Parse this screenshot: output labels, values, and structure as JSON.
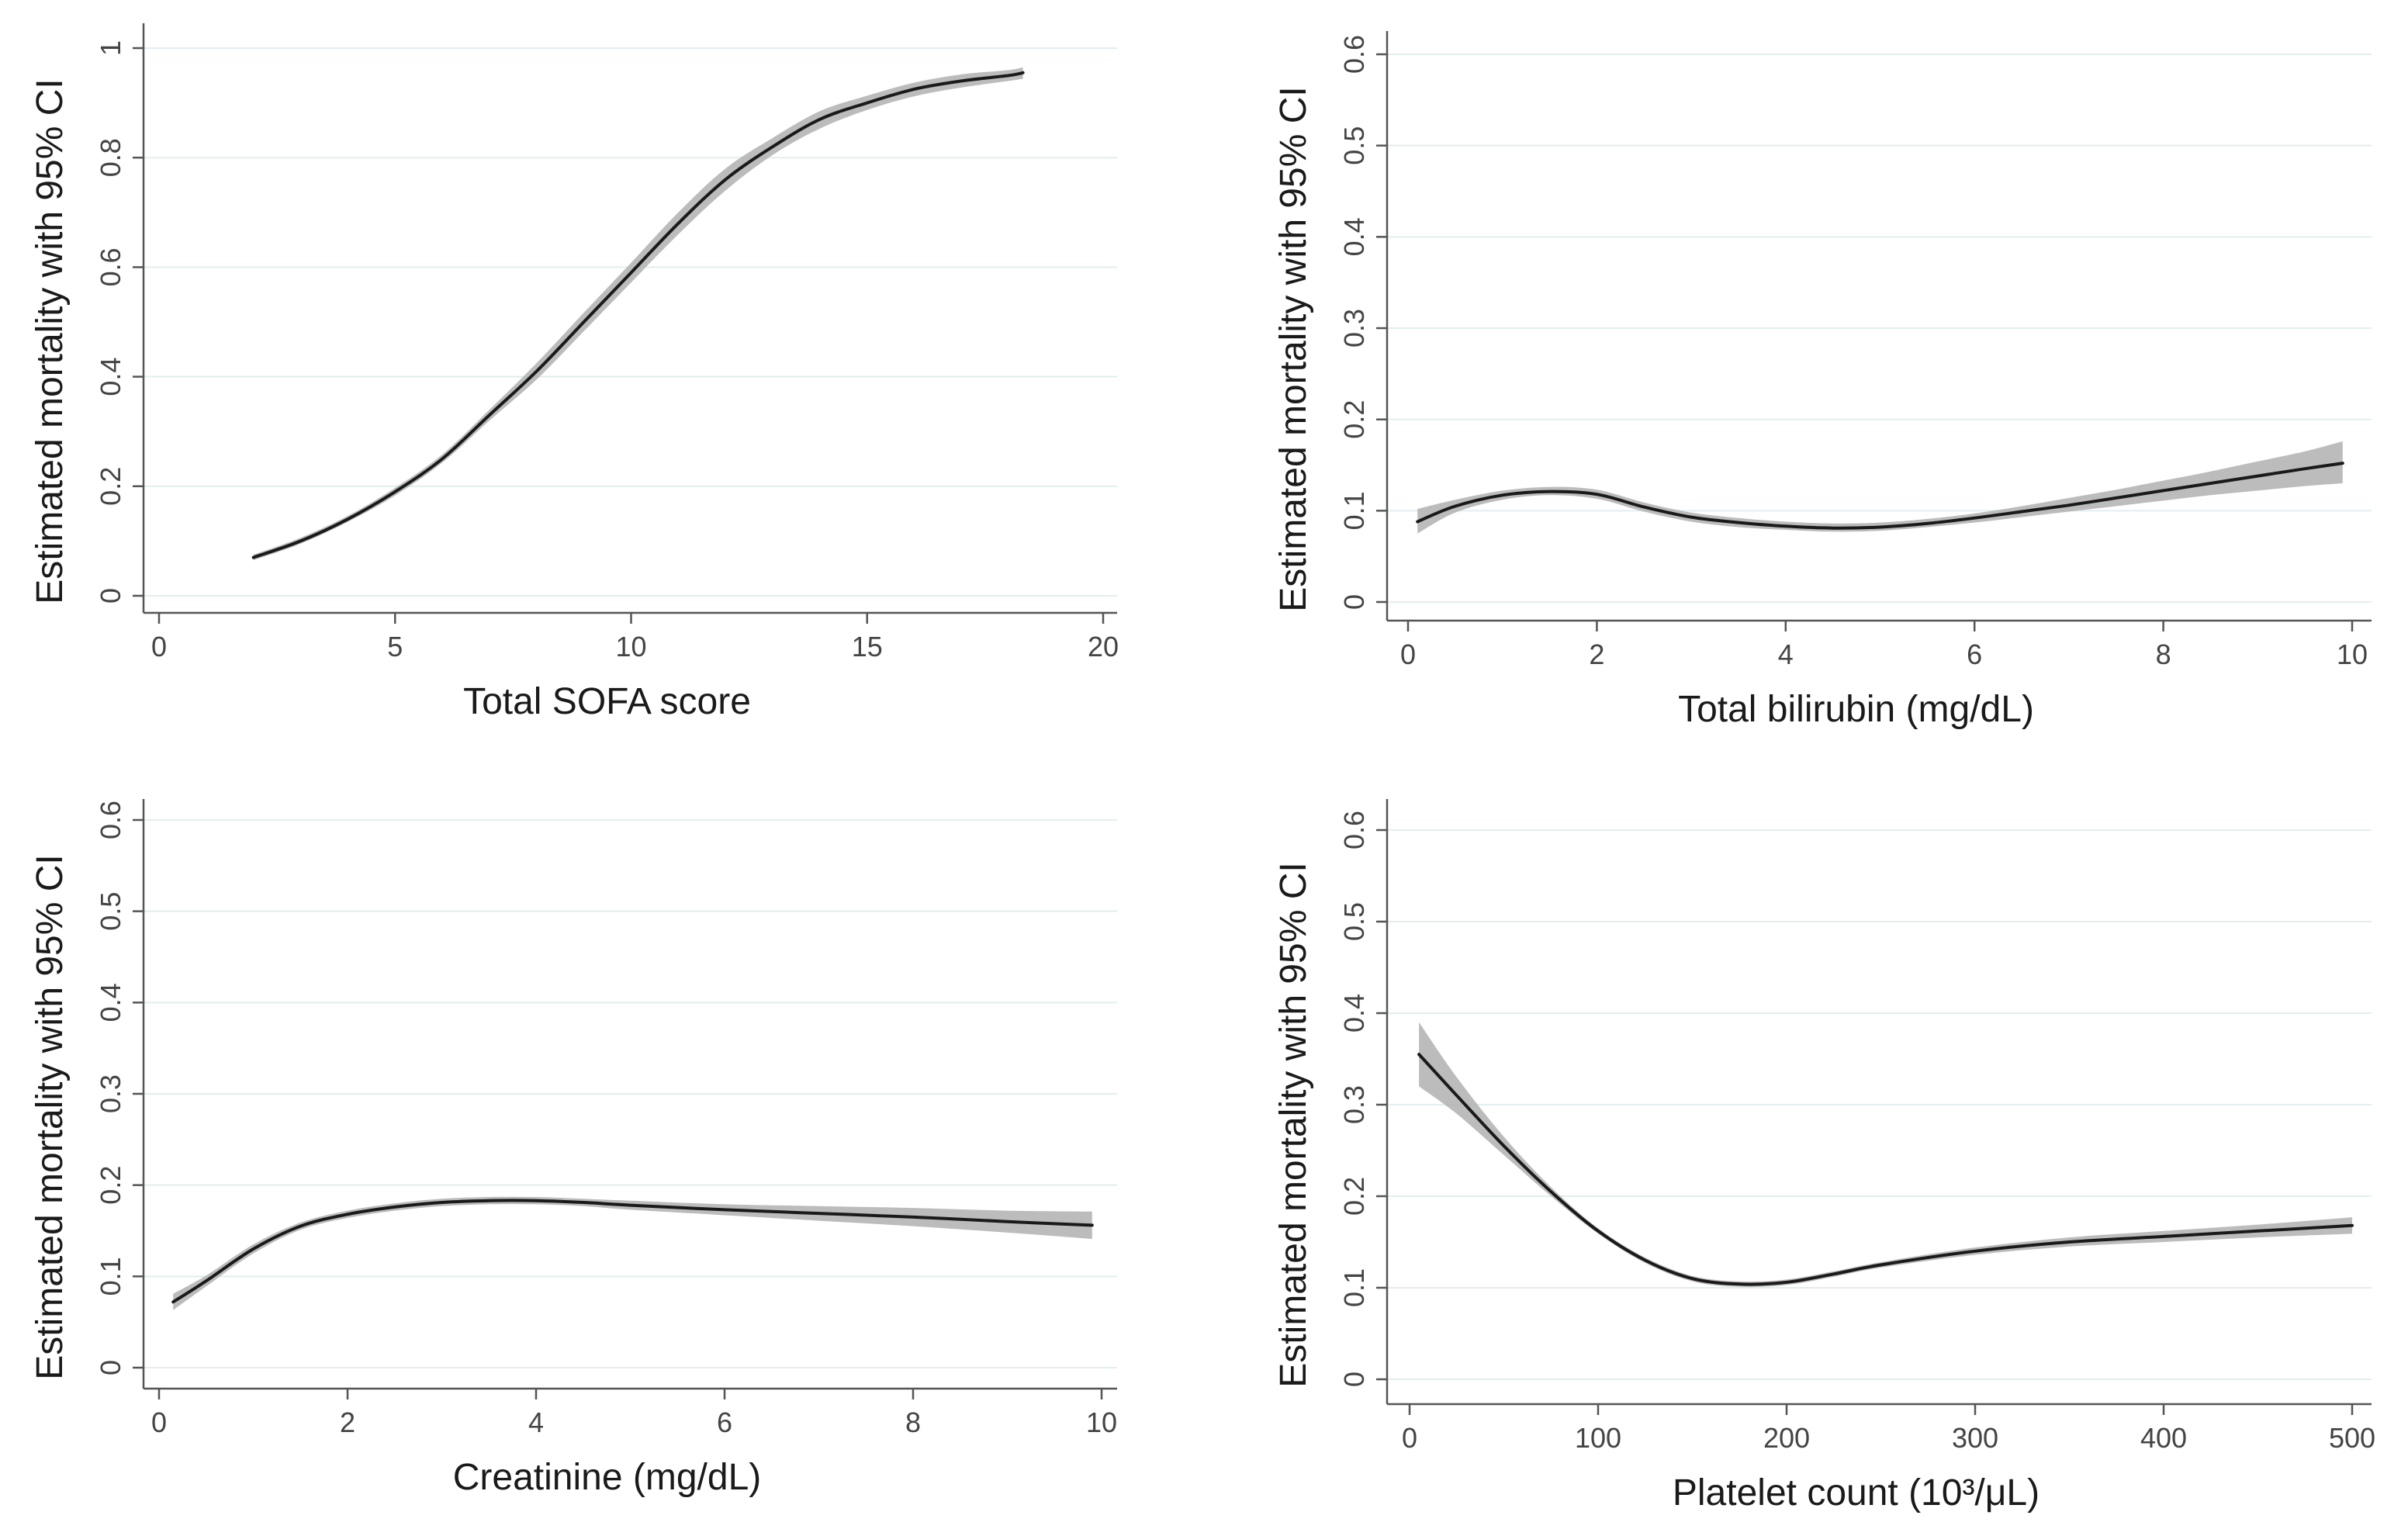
{
  "figure": {
    "description_note": "Four panels: estimated mortality with 95% CI versus predictors"
  },
  "chart_data": [
    {
      "type": "line",
      "id": "sofa",
      "xlabel": "Total SOFA score",
      "ylabel": "Estimated mortality with 95% CI",
      "xlim": [
        0,
        20
      ],
      "ylim": [
        0,
        1
      ],
      "xticks": [
        0,
        5,
        10,
        15,
        20
      ],
      "xtick_labels": [
        "0",
        "5",
        "10",
        "15",
        "20"
      ],
      "yticks": [
        0,
        0.2,
        0.4,
        0.6,
        0.8,
        1
      ],
      "ytick_labels": [
        "0",
        "0.2",
        "0.4",
        "0.6",
        "0.8",
        "1"
      ],
      "series": [
        {
          "name": "Estimated mortality",
          "x": [
            2,
            3,
            4,
            5,
            6,
            7,
            8,
            9,
            10,
            11,
            12,
            13,
            14,
            15,
            16,
            17,
            18,
            18.3
          ],
          "y": [
            0.07,
            0.1,
            0.14,
            0.19,
            0.25,
            0.33,
            0.41,
            0.5,
            0.59,
            0.68,
            0.76,
            0.82,
            0.87,
            0.9,
            0.925,
            0.94,
            0.95,
            0.955
          ],
          "lower": [
            0.065,
            0.095,
            0.135,
            0.183,
            0.243,
            0.32,
            0.395,
            0.483,
            0.572,
            0.66,
            0.74,
            0.805,
            0.853,
            0.887,
            0.912,
            0.928,
            0.94,
            0.944
          ],
          "upper": [
            0.075,
            0.106,
            0.146,
            0.197,
            0.258,
            0.34,
            0.425,
            0.517,
            0.608,
            0.7,
            0.78,
            0.836,
            0.885,
            0.913,
            0.937,
            0.952,
            0.96,
            0.965
          ]
        }
      ]
    },
    {
      "type": "line",
      "id": "bilirubin",
      "xlabel": "Total bilirubin (mg/dL)",
      "ylabel": "Estimated mortality with 95% CI",
      "xlim": [
        0,
        10
      ],
      "ylim": [
        0,
        0.6
      ],
      "xticks": [
        0,
        2,
        4,
        6,
        8,
        10
      ],
      "xtick_labels": [
        "0",
        "2",
        "4",
        "6",
        "8",
        "10"
      ],
      "yticks": [
        0,
        0.1,
        0.2,
        0.3,
        0.4,
        0.5,
        0.6
      ],
      "ytick_labels": [
        "0",
        "0.1",
        "0.2",
        "0.3",
        "0.4",
        "0.5",
        "0.6"
      ],
      "series": [
        {
          "name": "Estimated mortality",
          "x": [
            0.1,
            0.5,
            1,
            1.5,
            2,
            2.5,
            3,
            3.5,
            4,
            4.5,
            5,
            5.5,
            6,
            6.5,
            7,
            7.5,
            8,
            8.5,
            9,
            9.5,
            9.9
          ],
          "y": [
            0.088,
            0.105,
            0.117,
            0.121,
            0.118,
            0.104,
            0.093,
            0.087,
            0.083,
            0.081,
            0.082,
            0.086,
            0.092,
            0.099,
            0.106,
            0.114,
            0.122,
            0.13,
            0.138,
            0.146,
            0.152
          ],
          "lower": [
            0.075,
            0.098,
            0.112,
            0.117,
            0.113,
            0.099,
            0.088,
            0.082,
            0.079,
            0.077,
            0.078,
            0.082,
            0.087,
            0.093,
            0.099,
            0.105,
            0.111,
            0.117,
            0.122,
            0.127,
            0.13
          ],
          "upper": [
            0.102,
            0.112,
            0.122,
            0.126,
            0.123,
            0.109,
            0.098,
            0.092,
            0.088,
            0.086,
            0.087,
            0.091,
            0.097,
            0.105,
            0.114,
            0.123,
            0.133,
            0.143,
            0.154,
            0.165,
            0.176
          ]
        }
      ]
    },
    {
      "type": "line",
      "id": "creatinine",
      "xlabel": "Creatinine (mg/dL)",
      "ylabel": "Estimated mortality with 95% CI",
      "xlim": [
        0,
        10
      ],
      "ylim": [
        0,
        0.6
      ],
      "xticks": [
        0,
        2,
        4,
        6,
        8,
        10
      ],
      "xtick_labels": [
        "0",
        "2",
        "4",
        "6",
        "8",
        "10"
      ],
      "yticks": [
        0,
        0.1,
        0.2,
        0.3,
        0.4,
        0.5,
        0.6
      ],
      "ytick_labels": [
        "0",
        "0.1",
        "0.2",
        "0.3",
        "0.4",
        "0.5",
        "0.6"
      ],
      "series": [
        {
          "name": "Estimated mortality",
          "x": [
            0.15,
            0.5,
            1,
            1.5,
            2,
            2.5,
            3,
            3.5,
            4,
            4.5,
            5,
            6,
            7,
            8,
            9,
            9.9
          ],
          "y": [
            0.072,
            0.095,
            0.13,
            0.155,
            0.168,
            0.176,
            0.181,
            0.183,
            0.183,
            0.181,
            0.178,
            0.173,
            0.169,
            0.165,
            0.16,
            0.156
          ],
          "lower": [
            0.063,
            0.089,
            0.125,
            0.151,
            0.164,
            0.172,
            0.177,
            0.179,
            0.179,
            0.177,
            0.173,
            0.167,
            0.161,
            0.155,
            0.148,
            0.141
          ],
          "upper": [
            0.081,
            0.101,
            0.135,
            0.159,
            0.172,
            0.18,
            0.185,
            0.187,
            0.187,
            0.185,
            0.183,
            0.179,
            0.177,
            0.175,
            0.172,
            0.171
          ]
        }
      ]
    },
    {
      "type": "line",
      "id": "platelet",
      "xlabel": "Platelet count (10³/μL)",
      "ylabel": "Estimated mortality with 95% CI",
      "xlim": [
        0,
        500
      ],
      "ylim": [
        0,
        0.6
      ],
      "xticks": [
        0,
        100,
        200,
        300,
        400,
        500
      ],
      "xtick_labels": [
        "0",
        "100",
        "200",
        "300",
        "400",
        "500"
      ],
      "yticks": [
        0,
        0.1,
        0.2,
        0.3,
        0.4,
        0.5,
        0.6
      ],
      "ytick_labels": [
        "0",
        "0.1",
        "0.2",
        "0.3",
        "0.4",
        "0.5",
        "0.6"
      ],
      "series": [
        {
          "name": "Estimated mortality",
          "x": [
            5,
            25,
            50,
            75,
            100,
            125,
            150,
            175,
            200,
            225,
            250,
            300,
            350,
            400,
            450,
            500
          ],
          "y": [
            0.355,
            0.31,
            0.255,
            0.205,
            0.162,
            0.13,
            0.11,
            0.104,
            0.106,
            0.115,
            0.125,
            0.14,
            0.15,
            0.156,
            0.162,
            0.168
          ],
          "lower": [
            0.32,
            0.29,
            0.245,
            0.2,
            0.159,
            0.127,
            0.107,
            0.101,
            0.103,
            0.112,
            0.122,
            0.136,
            0.145,
            0.15,
            0.155,
            0.159
          ],
          "upper": [
            0.39,
            0.33,
            0.265,
            0.21,
            0.165,
            0.133,
            0.113,
            0.107,
            0.109,
            0.118,
            0.128,
            0.144,
            0.155,
            0.162,
            0.169,
            0.177
          ]
        }
      ]
    }
  ]
}
